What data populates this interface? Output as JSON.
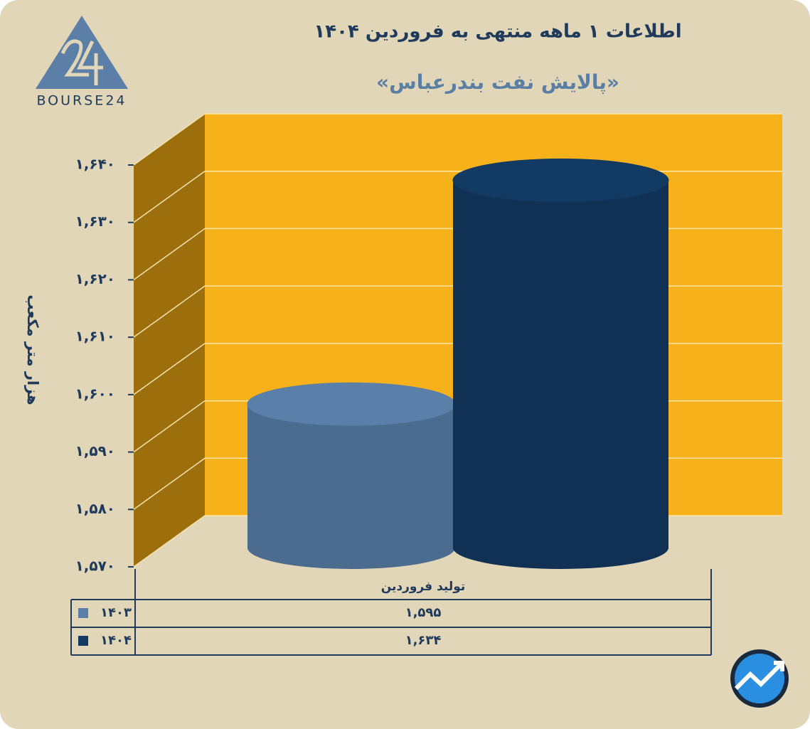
{
  "chart_data": {
    "type": "bar3d",
    "title": "اطلاعات ۱ ماهه منتهی به فروردین ۱۴۰۴",
    "subtitle": "«پالایش نفت بندرعباس»",
    "y_label": "هزار متر مکعب",
    "logo": "BOURSE24",
    "categories": [
      "تولید فروردین"
    ],
    "series": [
      {
        "name": "۱۴۰۳",
        "color": "#5a7fa8",
        "values": [
          1595
        ],
        "value_labels": [
          "۱,۵۹۵"
        ]
      },
      {
        "name": "۱۴۰۴",
        "color": "#133a63",
        "values": [
          1634
        ],
        "value_labels": [
          "۱,۶۳۴"
        ]
      }
    ],
    "ylim": [
      1570,
      1640
    ],
    "yticks": [
      {
        "value": 1570,
        "label": "۱,۵۷۰"
      },
      {
        "value": 1580,
        "label": "۱,۵۸۰"
      },
      {
        "value": 1590,
        "label": "۱,۵۹۰"
      },
      {
        "value": 1600,
        "label": "۱,۶۰۰"
      },
      {
        "value": 1610,
        "label": "۱,۶۱۰"
      },
      {
        "value": 1620,
        "label": "۱,۶۲۰"
      },
      {
        "value": 1630,
        "label": "۱,۶۳۰"
      },
      {
        "value": 1640,
        "label": "۱,۶۴۰"
      }
    ],
    "grid": true
  }
}
